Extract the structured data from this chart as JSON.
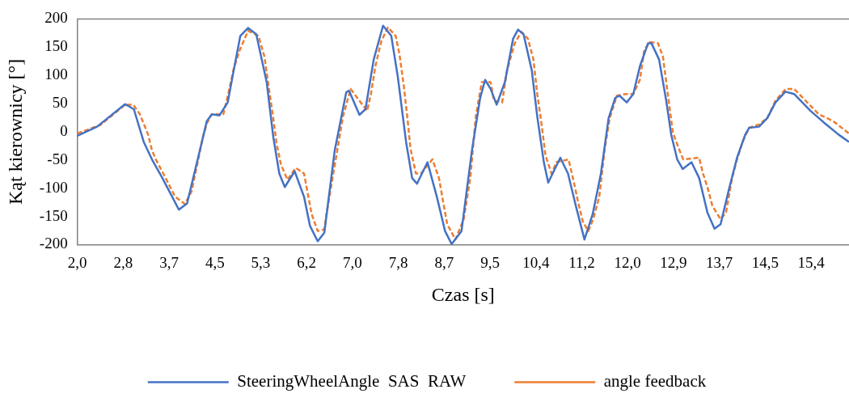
{
  "chart_data": {
    "type": "line",
    "xlabel": "Czas [s]",
    "ylabel": "Kąt kierownicy [°]",
    "xlim": [
      2,
      16.06
    ],
    "xticks": [
      {
        "value": 2,
        "label": "2,0"
      },
      {
        "value": 2.8355,
        "label": "2,8"
      },
      {
        "value": 3.671,
        "label": "3,7"
      },
      {
        "value": 4.5065,
        "label": "4,5"
      },
      {
        "value": 5.342,
        "label": "5,3"
      },
      {
        "value": 6.1775,
        "label": "6,2"
      },
      {
        "value": 7.013,
        "label": "7,0"
      },
      {
        "value": 7.8485,
        "label": "7,8"
      },
      {
        "value": 8.684,
        "label": "8,7"
      },
      {
        "value": 9.5195,
        "label": "9,5"
      },
      {
        "value": 10.355,
        "label": "10,4"
      },
      {
        "value": 11.1905,
        "label": "11,2"
      },
      {
        "value": 12.026,
        "label": "12,0"
      },
      {
        "value": 12.8615,
        "label": "12,9"
      },
      {
        "value": 13.697,
        "label": "13,7"
      },
      {
        "value": 14.5325,
        "label": "14,5"
      },
      {
        "value": 15.368,
        "label": "15,4"
      }
    ],
    "ylim": [
      -200,
      200
    ],
    "yticks": [
      -200,
      -150,
      -100,
      -50,
      0,
      50,
      100,
      150,
      200
    ],
    "grid": false,
    "legend": "bottom",
    "marker": "none",
    "series": [
      {
        "name": "SteeringWheelAngle  SAS  RAW",
        "color": "#4472c4",
        "line_style": "solid",
        "x": [
          2.0,
          2.36,
          2.87,
          3.03,
          3.21,
          3.36,
          3.55,
          3.85,
          4.0,
          4.21,
          4.36,
          4.45,
          4.59,
          4.74,
          4.85,
          4.97,
          5.11,
          5.26,
          5.45,
          5.57,
          5.68,
          5.78,
          5.96,
          6.13,
          6.24,
          6.38,
          6.5,
          6.69,
          6.9,
          6.95,
          7.14,
          7.25,
          7.4,
          7.57,
          7.72,
          7.84,
          7.99,
          8.1,
          8.19,
          8.38,
          8.55,
          8.7,
          8.82,
          9.0,
          9.19,
          9.34,
          9.43,
          9.53,
          9.64,
          9.79,
          9.94,
          10.03,
          10.13,
          10.28,
          10.38,
          10.5,
          10.58,
          10.68,
          10.8,
          10.94,
          11.09,
          11.24,
          11.39,
          11.54,
          11.68,
          11.8,
          11.88,
          12.01,
          12.13,
          12.25,
          12.4,
          12.46,
          12.6,
          12.73,
          12.82,
          12.93,
          13.03,
          13.19,
          13.33,
          13.48,
          13.61,
          13.72,
          13.87,
          14.02,
          14.17,
          14.24,
          14.42,
          14.57,
          14.72,
          14.9,
          15.06,
          15.36,
          15.62,
          15.87,
          16.06
        ],
        "values": [
          -7,
          9,
          49,
          40,
          -18,
          -49,
          -82,
          -138,
          -127,
          -42,
          19,
          31,
          29,
          52,
          109,
          170,
          184,
          173,
          88,
          -9,
          -74,
          -98,
          -70,
          -115,
          -167,
          -194,
          -179,
          -33,
          70,
          73,
          30,
          40,
          128,
          188,
          170,
          97,
          -18,
          -82,
          -92,
          -54,
          -115,
          -176,
          -199,
          -176,
          -33,
          60,
          92,
          76,
          48,
          88,
          165,
          181,
          173,
          109,
          27,
          -54,
          -90,
          -70,
          -46,
          -74,
          -134,
          -191,
          -146,
          -74,
          24,
          60,
          64,
          52,
          67,
          116,
          157,
          157,
          128,
          55,
          -5,
          -49,
          -66,
          -54,
          -82,
          -143,
          -172,
          -164,
          -103,
          -46,
          -5,
          7,
          9,
          24,
          52,
          71,
          67,
          37,
          15,
          -5,
          -18
        ]
      },
      {
        "name": "angle feedback",
        "color": "#ed7d31",
        "line_style": "dashed",
        "x": [
          2.0,
          2.42,
          2.87,
          3.02,
          3.14,
          3.29,
          3.36,
          3.43,
          3.61,
          3.78,
          3.96,
          4.08,
          4.29,
          4.36,
          4.45,
          4.66,
          4.75,
          4.85,
          4.96,
          5.11,
          5.3,
          5.41,
          5.48,
          5.56,
          5.63,
          5.71,
          5.83,
          5.98,
          6.13,
          6.2,
          6.27,
          6.38,
          6.5,
          6.54,
          6.65,
          6.75,
          6.84,
          6.98,
          7.1,
          7.28,
          7.35,
          7.43,
          7.54,
          7.66,
          7.8,
          7.87,
          7.95,
          8.02,
          8.07,
          8.17,
          8.26,
          8.47,
          8.59,
          8.67,
          8.74,
          8.89,
          9.04,
          9.16,
          9.26,
          9.37,
          9.53,
          9.59,
          9.74,
          9.83,
          9.97,
          10.09,
          10.21,
          10.31,
          10.38,
          10.46,
          10.53,
          10.64,
          10.73,
          10.95,
          11.03,
          11.13,
          11.21,
          11.31,
          11.4,
          11.51,
          11.61,
          11.7,
          11.83,
          12.0,
          12.13,
          12.25,
          12.33,
          12.43,
          12.58,
          12.67,
          12.73,
          12.85,
          12.96,
          13.04,
          13.33,
          13.4,
          13.48,
          13.57,
          13.72,
          13.82,
          13.93,
          14.02,
          14.12,
          14.24,
          14.42,
          14.57,
          14.72,
          14.91,
          15.06,
          15.27,
          15.51,
          15.77,
          16.06
        ],
        "values": [
          -3,
          12,
          48,
          48,
          31,
          -5,
          -33,
          -49,
          -82,
          -115,
          -128,
          -106,
          -9,
          15,
          31,
          31,
          67,
          112,
          145,
          179,
          170,
          133,
          84,
          31,
          -21,
          -58,
          -85,
          -64,
          -74,
          -110,
          -146,
          -176,
          -173,
          -146,
          -82,
          -25,
          27,
          76,
          60,
          37,
          67,
          116,
          161,
          185,
          170,
          137,
          80,
          19,
          -30,
          -74,
          -74,
          -49,
          -82,
          -127,
          -164,
          -191,
          -155,
          -82,
          27,
          88,
          88,
          55,
          52,
          109,
          157,
          177,
          165,
          128,
          67,
          12,
          -42,
          -74,
          -54,
          -49,
          -82,
          -127,
          -159,
          -176,
          -155,
          -115,
          -30,
          24,
          64,
          67,
          67,
          92,
          145,
          159,
          157,
          133,
          88,
          -1,
          -30,
          -49,
          -46,
          -74,
          -98,
          -131,
          -155,
          -143,
          -82,
          -49,
          -18,
          7,
          13,
          24,
          55,
          76,
          76,
          55,
          31,
          19,
          -3
        ]
      }
    ]
  }
}
